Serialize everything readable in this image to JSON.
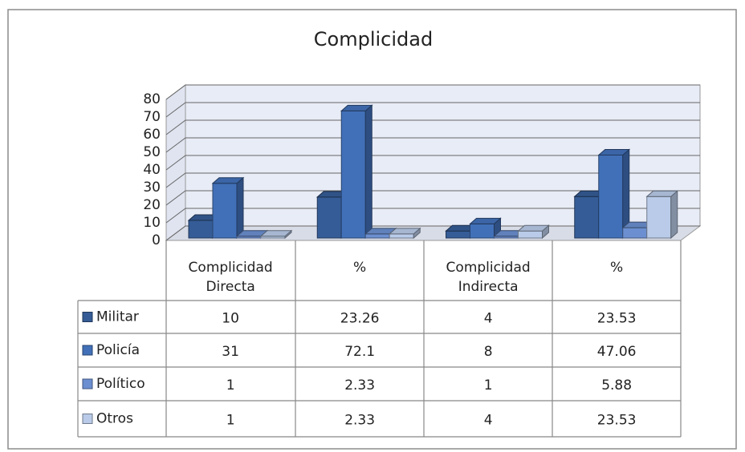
{
  "chart_data": {
    "type": "bar3d",
    "title": "Complicidad",
    "categories": [
      "Complicidad Directa",
      "%",
      "Complicidad Indirecta",
      "%"
    ],
    "series": [
      {
        "name": "Militar",
        "color": "#355c96",
        "values": [
          10,
          23.26,
          4,
          23.53
        ]
      },
      {
        "name": "Policía",
        "color": "#4170b8",
        "values": [
          31,
          72.1,
          8,
          47.06
        ]
      },
      {
        "name": "Político",
        "color": "#6b8fd0",
        "values": [
          1,
          2.33,
          1,
          5.88
        ]
      },
      {
        "name": "Otros",
        "color": "#b9cbe8",
        "values": [
          1,
          2.33,
          4,
          23.53
        ]
      }
    ],
    "ylim": [
      0,
      80
    ],
    "yticks": [
      0,
      10,
      20,
      30,
      40,
      50,
      60,
      70,
      80
    ],
    "grid": true
  }
}
